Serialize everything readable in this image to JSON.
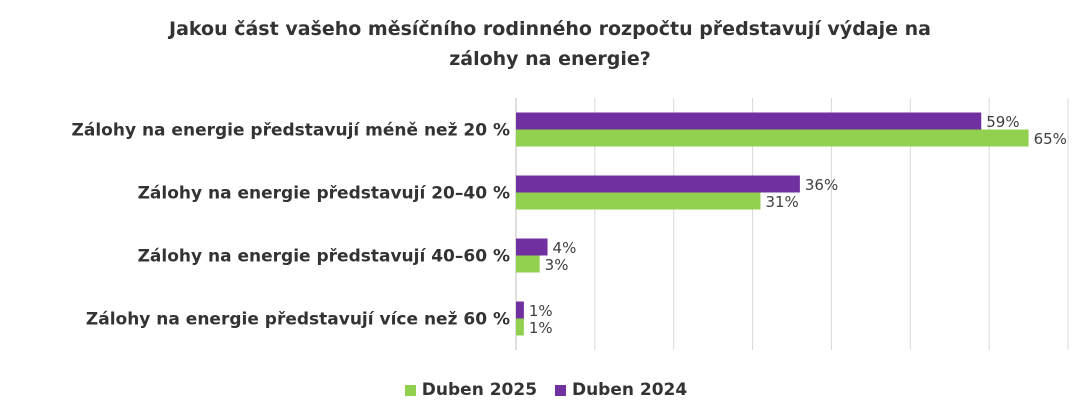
{
  "chart_data": {
    "type": "bar",
    "orientation": "horizontal",
    "title_lines": [
      "Jakou část vašeho měsíčního rodinného rozpočtu představují výdaje na",
      "zálohy na energie?"
    ],
    "categories": [
      "Zálohy na energie představují méně než 20 %",
      "Zálohy na energie představují 20–40 %",
      "Zálohy na energie představují 40–60 %",
      "Zálohy na energie představují více než 60 %"
    ],
    "series": [
      {
        "name": "Duben 2024",
        "color": "#7030a0",
        "values": [
          59,
          36,
          4,
          1
        ],
        "labels": [
          "59%",
          "36%",
          "4%",
          "1%"
        ]
      },
      {
        "name": "Duben 2025",
        "color": "#92d050",
        "values": [
          65,
          31,
          3,
          1
        ],
        "labels": [
          "65%",
          "31%",
          "3%",
          "1%"
        ]
      }
    ],
    "legend_order": [
      "Duben 2025",
      "Duben 2024"
    ],
    "xlim": [
      0,
      70
    ],
    "grid": true,
    "legend_position": "bottom"
  }
}
